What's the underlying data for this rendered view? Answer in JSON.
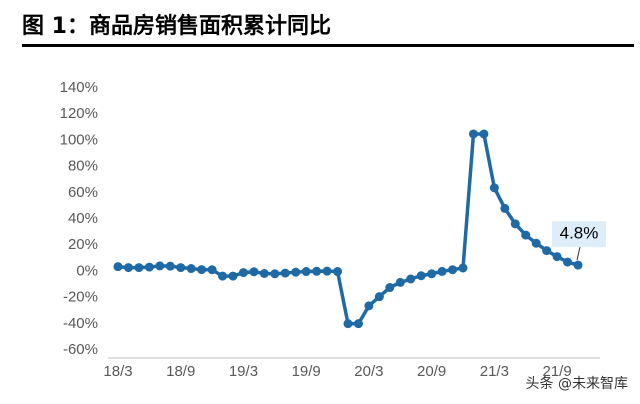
{
  "chart_data": {
    "type": "line",
    "title": "图 1：商品房销售面积累计同比",
    "watermark": "头条 @未来智库",
    "color": "#1f6aa5",
    "categories": [
      "18/3",
      null,
      null,
      null,
      null,
      null,
      "18/9",
      null,
      null,
      null,
      null,
      null,
      "19/3",
      null,
      null,
      null,
      null,
      null,
      "19/9",
      null,
      null,
      null,
      null,
      null,
      "20/3",
      null,
      null,
      null,
      null,
      null,
      "20/9",
      null,
      null,
      null,
      null,
      null,
      "21/3",
      null,
      null,
      null,
      null,
      null,
      "21/9",
      null,
      null
    ],
    "values": [
      3.6,
      2.9,
      2.9,
      3.3,
      4.2,
      4.0,
      2.9,
      2.2,
      1.4,
      1.3,
      -3.6,
      -3.6,
      -0.9,
      -0.3,
      -1.6,
      -1.8,
      -1.3,
      -0.6,
      -0.1,
      0.1,
      0.2,
      -0.1,
      -39.9,
      -39.9,
      -26.3,
      -19.3,
      -12.3,
      -8.4,
      -5.8,
      -3.3,
      -1.8,
      0.0,
      1.3,
      2.6,
      104.9,
      104.9,
      63.8,
      48.1,
      36.3,
      27.7,
      21.5,
      15.9,
      11.3,
      7.1,
      4.8
    ],
    "value_labels": [
      null,
      null,
      null,
      null,
      null,
      null,
      null,
      null,
      null,
      null,
      null,
      null,
      null,
      null,
      null,
      null,
      null,
      null,
      null,
      null,
      null,
      null,
      null,
      null,
      null,
      null,
      null,
      null,
      null,
      null,
      null,
      null,
      null,
      null,
      null,
      null,
      null,
      null,
      null,
      null,
      null,
      null,
      null,
      null,
      "4.8%"
    ],
    "ylim": [
      -60,
      140
    ],
    "yticks": [
      {
        "value": -60,
        "label": "-60%"
      },
      {
        "value": -40,
        "label": "-40%"
      },
      {
        "value": -20,
        "label": "-20%"
      },
      {
        "value": 0,
        "label": "0%"
      },
      {
        "value": 20,
        "label": "20%"
      },
      {
        "value": 40,
        "label": "40%"
      },
      {
        "value": 60,
        "label": "60%"
      },
      {
        "value": 80,
        "label": "80%"
      },
      {
        "value": 100,
        "label": "100%"
      },
      {
        "value": 120,
        "label": "120%"
      },
      {
        "value": 140,
        "label": "140%"
      }
    ]
  }
}
